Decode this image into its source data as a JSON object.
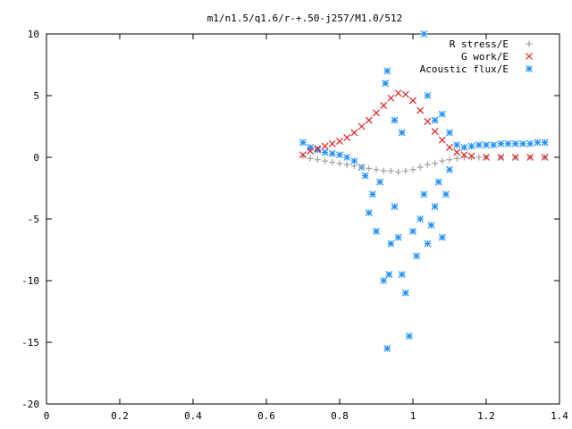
{
  "chart_data": {
    "type": "scatter",
    "title": "m1/n1.5/q1.6/r-+.50-j257/M1.0/512",
    "xlabel": "",
    "ylabel": "",
    "xlim": [
      0,
      1.4
    ],
    "ylim": [
      -20,
      10
    ],
    "xticks": [
      0,
      0.2,
      0.4,
      0.6,
      0.8,
      1,
      1.2,
      1.4
    ],
    "xtick_labels": [
      "0",
      "0.2",
      "0.4",
      "0.6",
      "0.8",
      "1",
      "1.2",
      "1.4"
    ],
    "yticks": [
      -20,
      -15,
      -10,
      -5,
      0,
      5,
      10
    ],
    "ytick_labels": [
      "-20",
      "-15",
      "-10",
      "-5",
      "0",
      "5",
      "10"
    ],
    "grid": false,
    "legend_position": "top-right",
    "series": [
      {
        "name": "R stress/E",
        "marker": "plus",
        "color": "#a0a0a0",
        "points": [
          [
            0.7,
            0.1
          ],
          [
            0.72,
            -0.1
          ],
          [
            0.74,
            -0.2
          ],
          [
            0.76,
            -0.3
          ],
          [
            0.78,
            -0.4
          ],
          [
            0.8,
            -0.5
          ],
          [
            0.82,
            -0.6
          ],
          [
            0.84,
            -0.7
          ],
          [
            0.86,
            -0.8
          ],
          [
            0.88,
            -0.9
          ],
          [
            0.9,
            -1.0
          ],
          [
            0.92,
            -1.1
          ],
          [
            0.94,
            -1.1
          ],
          [
            0.96,
            -1.2
          ],
          [
            0.98,
            -1.1
          ],
          [
            1.0,
            -1.0
          ],
          [
            1.02,
            -0.8
          ],
          [
            1.04,
            -0.6
          ],
          [
            1.06,
            -0.5
          ],
          [
            1.08,
            -0.3
          ],
          [
            1.1,
            -0.2
          ],
          [
            1.12,
            -0.1
          ],
          [
            1.14,
            0.0
          ],
          [
            1.16,
            0.0
          ],
          [
            1.18,
            0.0
          ],
          [
            1.2,
            0.0
          ],
          [
            1.24,
            0.0
          ],
          [
            1.28,
            0.0
          ],
          [
            1.32,
            0.0
          ],
          [
            1.36,
            0.0
          ]
        ]
      },
      {
        "name": "G work/E",
        "marker": "cross",
        "color": "#e02020",
        "points": [
          [
            0.7,
            0.2
          ],
          [
            0.72,
            0.5
          ],
          [
            0.74,
            0.7
          ],
          [
            0.76,
            0.9
          ],
          [
            0.78,
            1.1
          ],
          [
            0.8,
            1.3
          ],
          [
            0.82,
            1.6
          ],
          [
            0.84,
            2.0
          ],
          [
            0.86,
            2.5
          ],
          [
            0.88,
            3.0
          ],
          [
            0.9,
            3.6
          ],
          [
            0.92,
            4.2
          ],
          [
            0.94,
            4.8
          ],
          [
            0.96,
            5.2
          ],
          [
            0.98,
            5.1
          ],
          [
            1.0,
            4.6
          ],
          [
            1.02,
            3.8
          ],
          [
            1.04,
            2.9
          ],
          [
            1.06,
            2.1
          ],
          [
            1.08,
            1.4
          ],
          [
            1.1,
            0.8
          ],
          [
            1.12,
            0.4
          ],
          [
            1.14,
            0.2
          ],
          [
            1.16,
            0.1
          ],
          [
            1.2,
            0.0
          ],
          [
            1.24,
            0.0
          ],
          [
            1.28,
            0.0
          ],
          [
            1.32,
            0.0
          ],
          [
            1.36,
            0.0
          ]
        ]
      },
      {
        "name": "Acoustic flux/E",
        "marker": "star",
        "color": "#1e90ff",
        "points": [
          [
            0.7,
            1.2
          ],
          [
            0.72,
            0.8
          ],
          [
            0.74,
            0.6
          ],
          [
            0.76,
            0.4
          ],
          [
            0.78,
            0.3
          ],
          [
            0.8,
            0.2
          ],
          [
            0.82,
            0.0
          ],
          [
            0.84,
            -0.3
          ],
          [
            0.86,
            -0.8
          ],
          [
            0.87,
            -1.5
          ],
          [
            0.88,
            -4.5
          ],
          [
            0.89,
            -3.0
          ],
          [
            0.9,
            -6.0
          ],
          [
            0.91,
            -2.0
          ],
          [
            0.92,
            -10.0
          ],
          [
            0.93,
            -15.5
          ],
          [
            0.935,
            -9.5
          ],
          [
            0.94,
            -7.0
          ],
          [
            0.95,
            -4.0
          ],
          [
            0.96,
            -6.5
          ],
          [
            0.97,
            -9.5
          ],
          [
            0.98,
            -11.0
          ],
          [
            0.99,
            -14.5
          ],
          [
            1.0,
            -6.0
          ],
          [
            1.01,
            -8.0
          ],
          [
            1.02,
            -5.0
          ],
          [
            1.03,
            -3.0
          ],
          [
            1.04,
            -7.0
          ],
          [
            1.05,
            -5.5
          ],
          [
            1.06,
            -4.0
          ],
          [
            1.07,
            -2.0
          ],
          [
            1.08,
            -6.5
          ],
          [
            1.09,
            -3.0
          ],
          [
            1.1,
            -1.0
          ],
          [
            0.925,
            6.0
          ],
          [
            0.93,
            7.0
          ],
          [
            0.95,
            3.0
          ],
          [
            0.97,
            2.0
          ],
          [
            1.03,
            10.0
          ],
          [
            1.04,
            5.0
          ],
          [
            1.06,
            3.0
          ],
          [
            1.08,
            3.5
          ],
          [
            1.1,
            2.0
          ],
          [
            1.12,
            1.0
          ],
          [
            1.14,
            0.8
          ],
          [
            1.16,
            0.9
          ],
          [
            1.18,
            1.0
          ],
          [
            1.2,
            1.0
          ],
          [
            1.22,
            1.0
          ],
          [
            1.24,
            1.1
          ],
          [
            1.26,
            1.1
          ],
          [
            1.28,
            1.1
          ],
          [
            1.3,
            1.1
          ],
          [
            1.32,
            1.1
          ],
          [
            1.34,
            1.2
          ],
          [
            1.36,
            1.2
          ]
        ]
      }
    ]
  }
}
